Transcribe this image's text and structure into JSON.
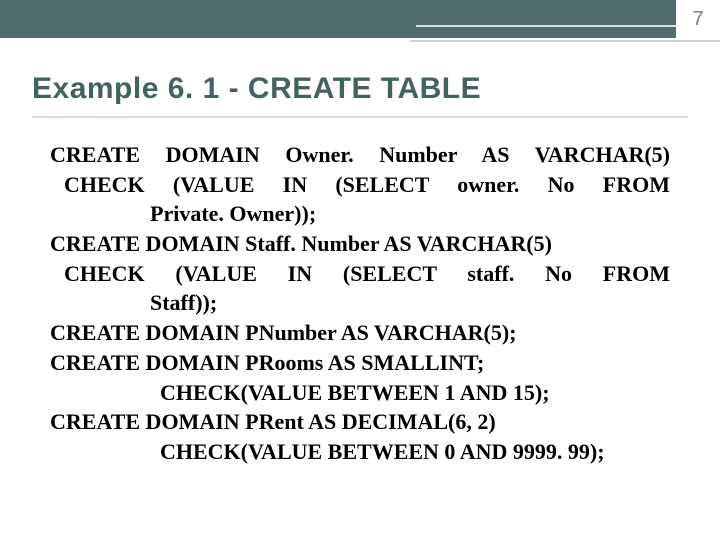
{
  "page_number": "7",
  "title": "Example 6. 1 - CREATE TABLE",
  "colors": {
    "topbar_bg": "#4f6b6b",
    "title_color": "#436363",
    "underline_color": "#d7dedd",
    "page_color": "#6b8686",
    "body_color": "#000000",
    "bg": "#ffffff"
  },
  "lines": [
    {
      "indent": "l0",
      "justify": true,
      "text": "CREATE DOMAIN Owner. Number AS VARCHAR(5)"
    },
    {
      "indent": "l1",
      "justify": true,
      "text": "CHECK (VALUE IN (SELECT owner. No FROM"
    },
    {
      "indent": "l2",
      "justify": false,
      "text": "Private. Owner));"
    },
    {
      "indent": "l0",
      "justify": false,
      "text": "CREATE DOMAIN Staff. Number AS VARCHAR(5)"
    },
    {
      "indent": "l1",
      "justify": true,
      "text": "CHECK (VALUE IN (SELECT staff. No FROM"
    },
    {
      "indent": "l2",
      "justify": false,
      "text": "Staff));"
    },
    {
      "indent": "l0",
      "justify": false,
      "text": "CREATE DOMAIN PNumber AS VARCHAR(5);"
    },
    {
      "indent": "l0",
      "justify": false,
      "text": "CREATE DOMAIN PRooms AS SMALLINT;"
    },
    {
      "indent": "l3",
      "justify": false,
      "text": "CHECK(VALUE BETWEEN 1 AND 15);"
    },
    {
      "indent": "l0",
      "justify": false,
      "text": "CREATE DOMAIN PRent AS DECIMAL(6, 2)"
    },
    {
      "indent": "l3",
      "justify": false,
      "text": "CHECK(VALUE BETWEEN 0 AND 9999. 99);"
    }
  ]
}
